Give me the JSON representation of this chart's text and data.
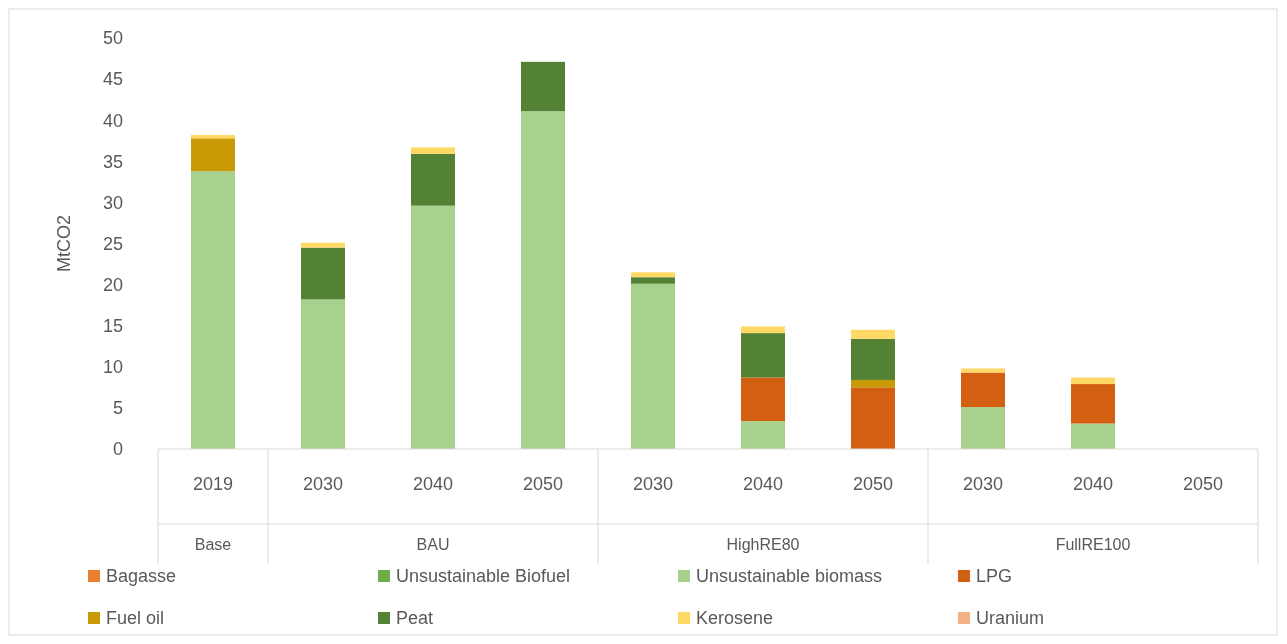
{
  "chart_data": {
    "type": "bar",
    "stacked": true,
    "ylabel": "MtCO2",
    "categories": [
      "2019",
      "2030",
      "2040",
      "2050",
      "2030",
      "2040",
      "2050",
      "2030",
      "2040",
      "2050"
    ],
    "annotations": [
      "Base",
      "BAU",
      "HighRE80",
      "FullRE100"
    ],
    "series": [
      {
        "name": "Bagasse",
        "color": "#ed7d31",
        "values": [
          0,
          0,
          0,
          0,
          0,
          0,
          0,
          0,
          0,
          0
        ]
      },
      {
        "name": "Unsustainable Biofuel",
        "color": "#70ad47",
        "values": [
          0,
          0,
          0,
          0,
          0,
          0,
          0,
          0,
          0,
          0
        ]
      },
      {
        "name": "Unsustainable biomass",
        "color": "#a9d18e",
        "values": [
          33.8,
          18.2,
          29.6,
          41.1,
          20.1,
          3.4,
          0,
          5.1,
          3.1,
          0
        ]
      },
      {
        "name": "LPG",
        "color": "#d35f12",
        "values": [
          0,
          0,
          0,
          0,
          0,
          5.3,
          7.5,
          4.2,
          4.8,
          0
        ]
      },
      {
        "name": "Fuel oil",
        "color": "#c99a06",
        "values": [
          4.0,
          0,
          0,
          0,
          0,
          0,
          0.9,
          0,
          0,
          0
        ]
      },
      {
        "name": "Peat",
        "color": "#548235",
        "values": [
          0,
          6.3,
          6.3,
          6.0,
          0.8,
          5.4,
          5.0,
          0,
          0,
          0
        ]
      },
      {
        "name": "Kerosene",
        "color": "#ffd966",
        "values": [
          0.4,
          0.6,
          0.8,
          0,
          0.6,
          0.8,
          1.1,
          0.5,
          0.8,
          0
        ]
      },
      {
        "name": "Uranium",
        "color": "#f4b183",
        "values": [
          0,
          0,
          0,
          0,
          0,
          0,
          0,
          0,
          0,
          0
        ]
      }
    ],
    "ylim": [
      0,
      50
    ],
    "yticks": [
      0,
      5,
      10,
      15,
      20,
      25,
      30,
      35,
      40,
      45,
      50
    ],
    "grid": false,
    "legend": "bottom"
  }
}
